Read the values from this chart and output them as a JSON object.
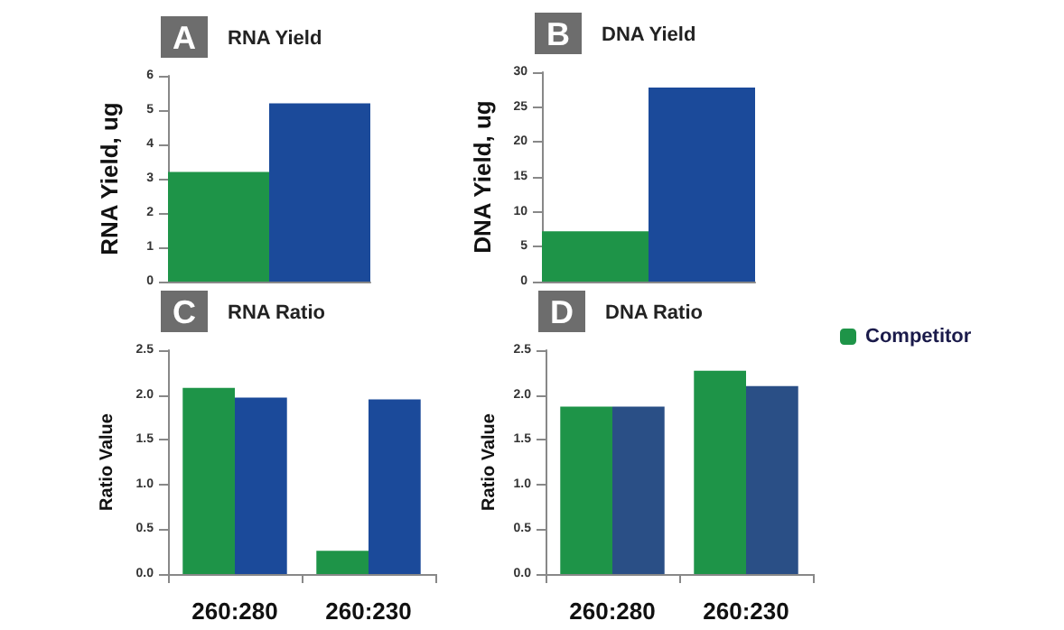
{
  "chart_data": [
    {
      "type": "bar",
      "title": "RNA Yield",
      "annotations": [
        "A"
      ],
      "ylabel": "RNA Yield, ug",
      "categories": [
        null
      ],
      "series": [
        {
          "color": "#1e9448",
          "values": [
            3.2
          ]
        },
        {
          "color": "#1b4a9a",
          "values": [
            5.2
          ]
        }
      ],
      "ylim": [
        0,
        6
      ],
      "yticks": [
        0,
        1,
        2,
        3,
        4,
        5,
        6
      ],
      "legend": false
    },
    {
      "type": "bar",
      "title": "DNA Yield",
      "annotations": [
        "B"
      ],
      "ylabel": "DNA Yield, ug",
      "categories": [
        null
      ],
      "series": [
        {
          "color": "#1e9448",
          "values": [
            7.2
          ]
        },
        {
          "color": "#1b4a9a",
          "values": [
            27.8
          ]
        }
      ],
      "ylim": [
        0,
        30
      ],
      "yticks": [
        0,
        5,
        10,
        15,
        20,
        25,
        30
      ],
      "legend": false
    },
    {
      "type": "bar",
      "title": "RNA Ratio",
      "annotations": [
        "C"
      ],
      "ylabel": "Ratio Value",
      "categories": [
        "260:280",
        "260:230"
      ],
      "series": [
        {
          "color": "#1e9448",
          "values": [
            2.08,
            0.26
          ]
        },
        {
          "color": "#1b4a9a",
          "values": [
            1.97,
            1.95
          ]
        }
      ],
      "ylim": [
        0,
        2.5
      ],
      "yticks": [
        {
          "value": 0,
          "label": "0.0"
        },
        {
          "value": 0.5,
          "label": "0.5"
        },
        {
          "value": 1,
          "label": "1.0"
        },
        {
          "value": 1.5,
          "label": "1.5"
        },
        {
          "value": 2,
          "label": "2.0"
        },
        {
          "value": 2.5,
          "label": "2.5"
        }
      ],
      "legend": false
    },
    {
      "type": "bar",
      "title": "DNA Ratio",
      "annotations": [
        "D"
      ],
      "ylabel": "Ratio Value",
      "categories": [
        "260:280",
        "260:230"
      ],
      "series": [
        {
          "name": "Competitor",
          "color": "#1e9448",
          "values": [
            1.87,
            2.27
          ]
        },
        {
          "color": "#2a4f86",
          "values": [
            1.87,
            2.1
          ]
        }
      ],
      "ylim": [
        0,
        2.5
      ],
      "yticks": [
        {
          "value": 0,
          "label": "0.0"
        },
        {
          "value": 0.5,
          "label": "0.5"
        },
        {
          "value": 1,
          "label": "1.0"
        },
        {
          "value": 1.5,
          "label": "1.5"
        },
        {
          "value": 2,
          "label": "2.0"
        },
        {
          "value": 2.5,
          "label": "2.5"
        }
      ],
      "legend": "right"
    }
  ]
}
